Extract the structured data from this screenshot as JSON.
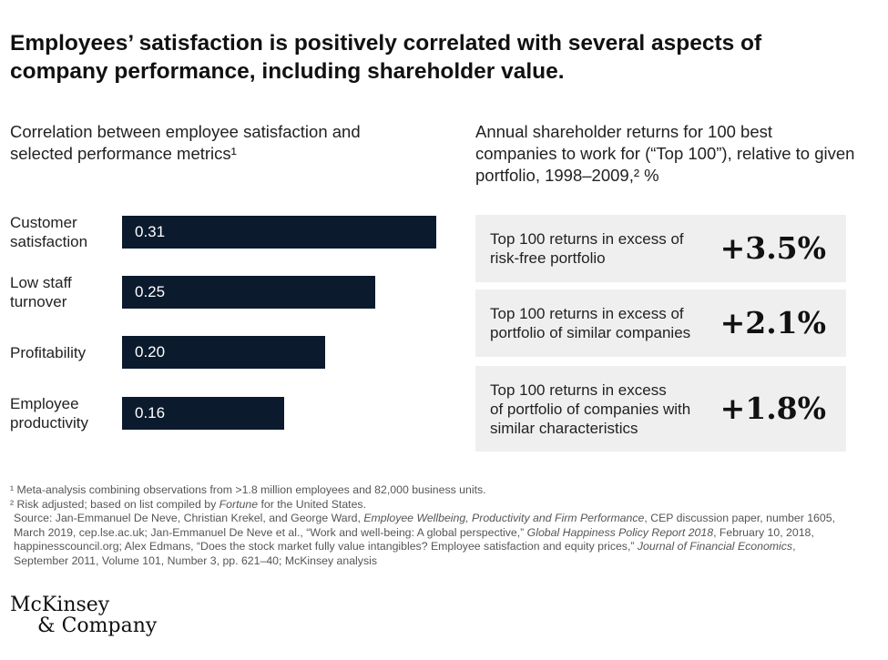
{
  "title": "Employees’ satisfaction is positively correlated with several aspects of company performance, including shareholder value.",
  "left_subtitle": "Correlation between employee satisfaction and selected performance metrics¹",
  "right_subtitle": "Annual shareholder returns for 100 best companies to work for (“Top 100”), relative to given portfolio, 1998–2009,² %",
  "chart_data": [
    {
      "type": "bar",
      "orientation": "horizontal",
      "title": "Correlation between employee satisfaction and selected performance metrics¹",
      "categories": [
        "Customer satisfaction",
        "Low staff turnover",
        "Profitability",
        "Employee productivity"
      ],
      "values": [
        0.31,
        0.25,
        0.2,
        0.16
      ],
      "value_labels": [
        "0.31",
        "0.25",
        "0.20",
        "0.16"
      ],
      "bar_color": "#0b1a2d"
    },
    {
      "type": "table",
      "title": "Annual shareholder returns for 100 best companies to work for (“Top 100”), relative to given portfolio, 1998–2009,² %",
      "rows": [
        {
          "label": "Top 100 returns in excess of risk-free portfolio",
          "value": "+3.5%"
        },
        {
          "label": "Top 100 returns in excess of portfolio of similar companies",
          "value": "+2.1%"
        },
        {
          "label": "Top 100 returns in excess of portfolio of companies with similar characteristics",
          "value": "+1.8%"
        }
      ]
    }
  ],
  "bar_labels": [
    [
      "Customer",
      "satisfaction"
    ],
    [
      "Low staff",
      "turnover"
    ],
    [
      "Profitability"
    ],
    [
      "Employee",
      "productivity"
    ]
  ],
  "card_lines": [
    [
      "Top 100 returns in excess of",
      "risk-free portfolio"
    ],
    [
      "Top 100 returns in excess of",
      "portfolio of similar companies"
    ],
    [
      "Top 100 returns in excess",
      "of portfolio of companies with",
      "similar characteristics"
    ]
  ],
  "footnotes": {
    "note1": "¹ Meta-analysis combining observations from >1.8 million employees and 82,000 business units.",
    "note2_pre": "² Risk adjusted; based on list compiled by ",
    "note2_em": "Fortune",
    "note2_post": " for the United States.",
    "source": [
      {
        "t": "Source: Jan-Emmanuel De Neve, Christian Krekel, and George Ward, ",
        "i": false
      },
      {
        "t": "Employee Wellbeing, Productivity and Firm Performance",
        "i": true
      },
      {
        "t": ", CEP discussion paper, number 1605, March 2019, cep.lse.ac.uk; Jan-Emmanuel De Neve et al., “Work and well-being: A global perspective,” ",
        "i": false
      },
      {
        "t": "Global Happiness Policy Report 2018",
        "i": true
      },
      {
        "t": ", February 10, 2018, happinesscouncil.org; Alex Edmans, “Does the stock market fully value intangibles? Employee satisfaction and equity prices,” ",
        "i": false
      },
      {
        "t": "Journal of Financial Economics",
        "i": true
      },
      {
        "t": ", September 2011, Volume 101, Number 3, pp. 621–40; McKinsey analysis",
        "i": false
      }
    ]
  },
  "logo": {
    "line1": "McKinsey",
    "line2": "& Company"
  }
}
